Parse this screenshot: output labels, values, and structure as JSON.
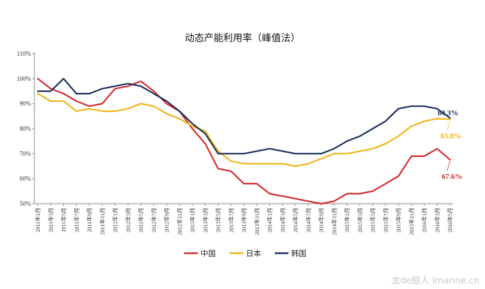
{
  "chart_data": {
    "type": "line",
    "title": "动态产能利用率（峰值法）",
    "xlabel": "",
    "ylabel": "",
    "ylim": [
      0.5,
      1.1
    ],
    "yticks": [
      "50%",
      "60%",
      "70%",
      "80%",
      "90%",
      "100%",
      "110%"
    ],
    "x": [
      "2011年1月",
      "2011年3月",
      "2011年5月",
      "2011年7月",
      "2011年9月",
      "2011年11月",
      "2012年1月",
      "2012年3月",
      "2012年5月",
      "2012年7月",
      "2012年9月",
      "2012年11月",
      "2013年1月",
      "2013年3月",
      "2013年5月",
      "2013年7月",
      "2013年9月",
      "2013年11月",
      "2014年1月",
      "2014年3月",
      "2014年5月",
      "2014年7月",
      "2014年9月",
      "2014年11月",
      "2015年1月",
      "2015年3月",
      "2015年5月",
      "2015年7月",
      "2015年9月",
      "2015年11月",
      "2016年1月",
      "2016年3月",
      "2016年5月"
    ],
    "grid": false,
    "legend_position": "bottom",
    "series": [
      {
        "name": "中国",
        "color": "#d42a2a",
        "values": [
          1.0,
          0.96,
          0.94,
          0.91,
          0.89,
          0.9,
          0.96,
          0.97,
          0.99,
          0.95,
          0.9,
          0.87,
          0.8,
          0.74,
          0.64,
          0.63,
          0.58,
          0.58,
          0.54,
          0.53,
          0.52,
          0.51,
          0.5,
          0.51,
          0.54,
          0.54,
          0.55,
          0.58,
          0.61,
          0.69,
          0.69,
          0.72,
          0.676
        ]
      },
      {
        "name": "日本",
        "color": "#f2b319",
        "values": [
          0.94,
          0.91,
          0.91,
          0.87,
          0.88,
          0.87,
          0.87,
          0.88,
          0.9,
          0.89,
          0.86,
          0.84,
          0.81,
          0.79,
          0.71,
          0.67,
          0.66,
          0.66,
          0.66,
          0.66,
          0.65,
          0.66,
          0.68,
          0.7,
          0.7,
          0.71,
          0.72,
          0.74,
          0.77,
          0.81,
          0.83,
          0.84,
          0.838
        ]
      },
      {
        "name": "韩国",
        "color": "#1a2f5a",
        "values": [
          0.95,
          0.95,
          1.0,
          0.94,
          0.94,
          0.96,
          0.97,
          0.98,
          0.97,
          0.94,
          0.91,
          0.87,
          0.82,
          0.78,
          0.7,
          0.7,
          0.7,
          0.71,
          0.72,
          0.71,
          0.7,
          0.7,
          0.7,
          0.72,
          0.75,
          0.77,
          0.8,
          0.83,
          0.88,
          0.89,
          0.89,
          0.88,
          0.843
        ]
      }
    ],
    "annotations": [
      {
        "series": "韩国",
        "text": "84.3%"
      },
      {
        "series": "日本",
        "text": "83.8%"
      },
      {
        "series": "中国",
        "text": "67.6%"
      }
    ]
  },
  "watermark": "龙de船人 imarine.cn"
}
